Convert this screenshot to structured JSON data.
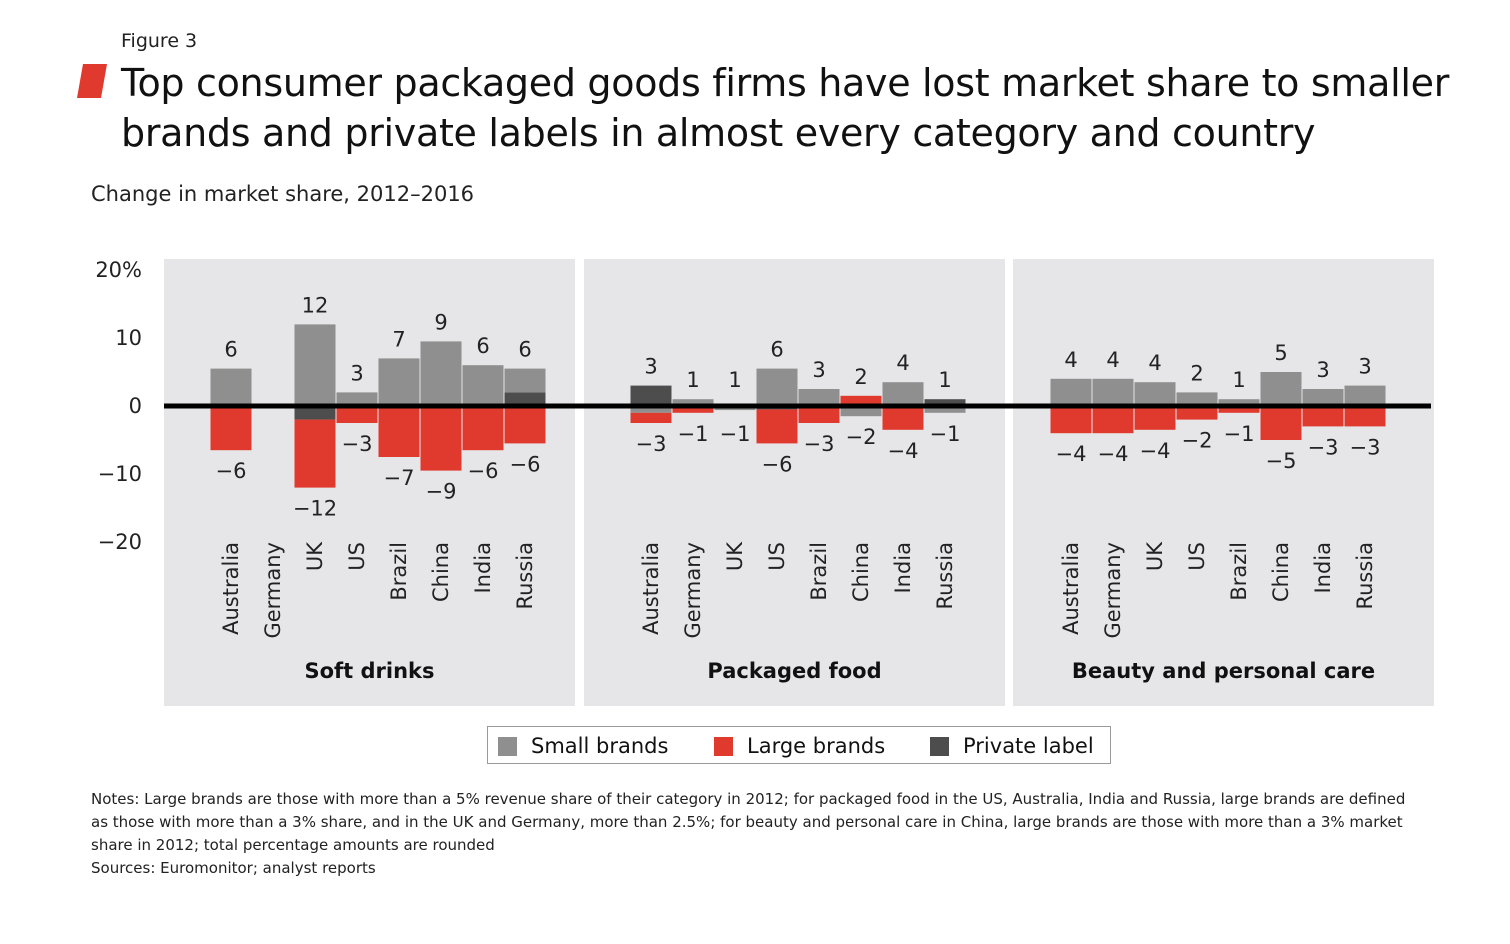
{
  "figure_label": "Figure 3",
  "title": "Top consumer packaged goods firms have lost market share to smaller brands and private labels in almost every category and country",
  "subtitle": "Change in market share, 2012–2016",
  "colors": {
    "small_brands": "#8f8f8f",
    "large_brands": "#e03a2f",
    "private_label": "#4d4d4d",
    "panel_bg": "#e6e6e8",
    "accent": "#e03a2f"
  },
  "legend": [
    {
      "key": "small",
      "label": "Small brands",
      "color": "#8f8f8f"
    },
    {
      "key": "large",
      "label": "Large brands",
      "color": "#e03a2f"
    },
    {
      "key": "private",
      "label": "Private label",
      "color": "#4d4d4d"
    }
  ],
  "notes": "Notes: Large brands are those with more than a 5% revenue share of their category in 2012; for packaged food in the US, Australia, India and Russia, large brands are defined as those with more than a 3% share, and in the UK and Germany, more than 2.5%; for beauty and personal care in China, large brands are those with more than a 3% market share in 2012; total percentage amounts are rounded",
  "sources": "Sources: Euromonitor; analyst reports",
  "chart_data": {
    "type": "bar",
    "stacked": true,
    "ylim": [
      -20,
      20
    ],
    "yticks": [
      {
        "value": 20,
        "label": "20%"
      },
      {
        "value": 10,
        "label": "10"
      },
      {
        "value": 0,
        "label": "0"
      },
      {
        "value": -10,
        "label": "−10"
      },
      {
        "value": -20,
        "label": "−20"
      }
    ],
    "series_names": {
      "small": "Small brands",
      "large": "Large brands",
      "private": "Private label"
    },
    "panels": [
      {
        "name": "Soft drinks",
        "countries": [
          {
            "name": "Australia",
            "small": 5.5,
            "large": -6.5,
            "private": 0,
            "top_label": "6",
            "bottom_label": "−6"
          },
          {
            "name": "Germany",
            "small": 0,
            "large": 0,
            "private": 0,
            "top_label": "",
            "bottom_label": ""
          },
          {
            "name": "UK",
            "small": 12,
            "large": -10,
            "private": -2,
            "top_label": "12",
            "bottom_label": "−12"
          },
          {
            "name": "US",
            "small": 2,
            "large": -2.5,
            "private": 0,
            "top_label": "3",
            "bottom_label": "−3"
          },
          {
            "name": "Brazil",
            "small": 7,
            "large": -7.5,
            "private": 0,
            "top_label": "7",
            "bottom_label": "−7"
          },
          {
            "name": "China",
            "small": 9.5,
            "large": -9.5,
            "private": 0,
            "top_label": "9",
            "bottom_label": "−9"
          },
          {
            "name": "India",
            "small": 6,
            "large": -6.5,
            "private": 0,
            "top_label": "6",
            "bottom_label": "−6"
          },
          {
            "name": "Russia",
            "small": 3.5,
            "large": -5.5,
            "private": 2,
            "top_label": "6",
            "bottom_label": "−6"
          }
        ]
      },
      {
        "name": "Packaged food",
        "countries": [
          {
            "name": "Australia",
            "small": -1,
            "large": -1.5,
            "private": 3,
            "top_label": "3",
            "bottom_label": "−3"
          },
          {
            "name": "Germany",
            "small": 1,
            "large": -1,
            "private": 0,
            "top_label": "1",
            "bottom_label": "−1"
          },
          {
            "name": "UK",
            "small": -0.6,
            "large": 0,
            "private": 0,
            "top_label": "1",
            "bottom_label": "−1"
          },
          {
            "name": "US",
            "small": 5.5,
            "large": -5,
            "private": -0.5,
            "top_label": "6",
            "bottom_label": "−6"
          },
          {
            "name": "Brazil",
            "small": 2.5,
            "large": -2.5,
            "private": 0,
            "top_label": "3",
            "bottom_label": "−3"
          },
          {
            "name": "China",
            "small": -1.5,
            "large": 1.5,
            "private": 0,
            "top_label": "2",
            "bottom_label": "−2"
          },
          {
            "name": "India",
            "small": 3.5,
            "large": -3.5,
            "private": 0,
            "top_label": "4",
            "bottom_label": "−4"
          },
          {
            "name": "Russia",
            "small": -1,
            "large": 0,
            "private": 1,
            "top_label": "1",
            "bottom_label": "−1"
          }
        ]
      },
      {
        "name": "Beauty and personal care",
        "countries": [
          {
            "name": "Australia",
            "small": 4,
            "large": -4,
            "private": 0,
            "top_label": "4",
            "bottom_label": "−4"
          },
          {
            "name": "Germany",
            "small": 4,
            "large": -4,
            "private": 0,
            "top_label": "4",
            "bottom_label": "−4"
          },
          {
            "name": "UK",
            "small": 3.5,
            "large": -3.5,
            "private": 0,
            "top_label": "4",
            "bottom_label": "−4"
          },
          {
            "name": "US",
            "small": 2,
            "large": -2,
            "private": 0,
            "top_label": "2",
            "bottom_label": "−2"
          },
          {
            "name": "Brazil",
            "small": 1,
            "large": -1,
            "private": 0,
            "top_label": "1",
            "bottom_label": "−1"
          },
          {
            "name": "China",
            "small": 5,
            "large": -5,
            "private": 0,
            "top_label": "5",
            "bottom_label": "−5"
          },
          {
            "name": "India",
            "small": 2.5,
            "large": -3,
            "private": 0,
            "top_label": "3",
            "bottom_label": "−3"
          },
          {
            "name": "Russia",
            "small": 3,
            "large": -3,
            "private": 0,
            "top_label": "3",
            "bottom_label": "−3"
          }
        ]
      }
    ]
  }
}
